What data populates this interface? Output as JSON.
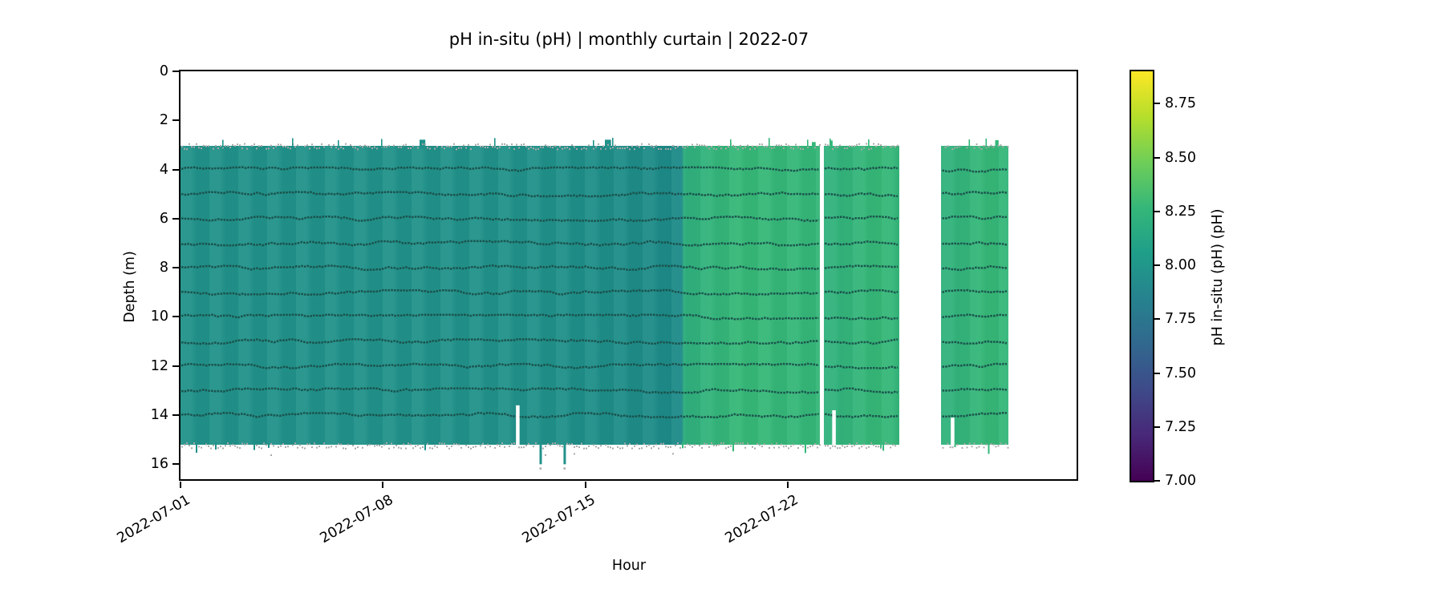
{
  "chart_data": {
    "type": "heatmap",
    "title": "pH in-situ (pH) | monthly curtain | 2022-07",
    "xlabel": "Hour",
    "ylabel": "Depth (m)",
    "x_tick_labels": [
      "2022-07-01",
      "2022-07-08",
      "2022-07-15",
      "2022-07-22"
    ],
    "x_tick_days": [
      0,
      7,
      14,
      21
    ],
    "x_range_days": [
      0,
      31
    ],
    "y_tick_labels": [
      "0",
      "2",
      "4",
      "6",
      "8",
      "10",
      "12",
      "14",
      "16"
    ],
    "y_ticks_m": [
      0,
      2,
      4,
      6,
      8,
      10,
      12,
      14,
      16
    ],
    "ylim_m": [
      0,
      16.64
    ],
    "grid": false,
    "curtain": {
      "depth_top_m": 3.05,
      "depth_bottom_m": 15.2,
      "sensor_trace_depths_m": [
        4,
        5,
        6,
        7,
        8,
        9,
        10,
        11,
        12,
        13,
        14
      ],
      "segments": [
        {
          "start_day": 0,
          "end_day": 22.1,
          "ph_before": 8.0,
          "ph_after": 8.2,
          "transition_day": 17.33,
          "color_before": "#21928a",
          "color_after": "#35b779"
        },
        {
          "start_day": 22.24,
          "end_day": 24.85,
          "ph": 8.2,
          "color": "#34b67a"
        },
        {
          "start_day": 26.3,
          "end_day": 28.62,
          "ph": 8.2,
          "color": "#34b67a"
        }
      ],
      "gaps_days": [
        [
          22.1,
          22.24
        ],
        [
          24.85,
          26.3
        ],
        [
          28.62,
          31
        ]
      ],
      "bottom_notches": [
        {
          "day": 11.65,
          "top_m": 13.6
        },
        {
          "day": 22.58,
          "top_m": 13.8
        },
        {
          "day": 26.68,
          "top_m": 14.1
        }
      ],
      "deep_spikes": [
        {
          "day": 12.45,
          "to_m": 16.0
        },
        {
          "day": 13.28,
          "to_m": 16.0
        }
      ],
      "trace_color": "#1a4f4a",
      "speckle_color": "#a9a9a9"
    },
    "colorbar": {
      "label": "pH in-situ (pH) (pH)",
      "tick_labels": [
        "8.75",
        "8.50",
        "8.25",
        "8.00",
        "7.75",
        "7.50",
        "7.25",
        "7.00"
      ],
      "tick_values": [
        8.75,
        8.5,
        8.25,
        8.0,
        7.75,
        7.5,
        7.25,
        7.0
      ],
      "vmin": 7.0,
      "vmax": 8.9,
      "colormap": "viridis",
      "viridis_stops": [
        "#440154",
        "#482878",
        "#3e4a89",
        "#31688e",
        "#26828e",
        "#1f9e89",
        "#35b779",
        "#6ece58",
        "#b5de2b",
        "#fde725"
      ]
    }
  }
}
